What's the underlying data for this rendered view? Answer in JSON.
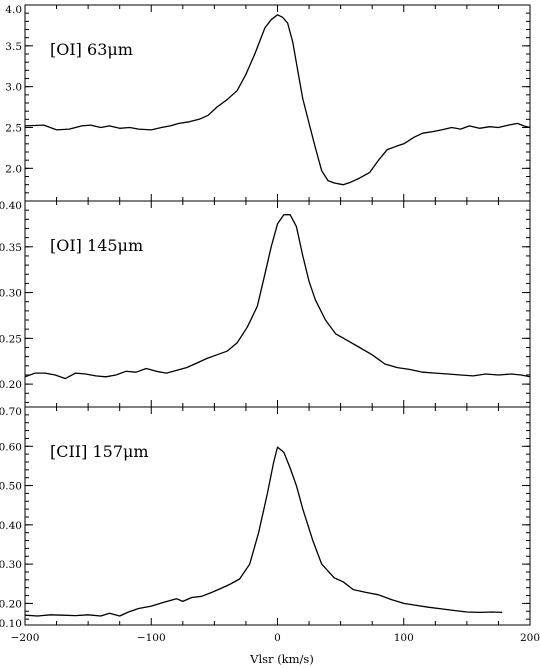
{
  "chart_data": [
    {
      "type": "line",
      "panel_label": "[OI] 63μm",
      "xlim": [
        -200,
        200
      ],
      "ylim": [
        1.6,
        4.0
      ],
      "yticks": [
        {
          "v": 2.0,
          "label": "2.0"
        },
        {
          "v": 2.5,
          "label": "2.5"
        },
        {
          "v": 3.0,
          "label": "3.0"
        },
        {
          "v": 3.5,
          "label": "3.5"
        },
        {
          "v": 4.0,
          "label": "4.0"
        }
      ],
      "yminor_step": 0.1,
      "series": [
        {
          "x": [
            -200,
            -185,
            -175,
            -165,
            -155,
            -148,
            -140,
            -133,
            -125,
            -117,
            -110,
            -100,
            -92,
            -85,
            -78,
            -70,
            -62,
            -55,
            -48,
            -40,
            -32,
            -25,
            -18,
            -10,
            -5,
            0,
            4,
            8,
            12,
            16,
            20,
            25,
            30,
            35,
            40,
            45,
            52,
            58,
            65,
            73,
            80,
            87,
            94,
            100,
            108,
            115,
            123,
            130,
            138,
            145,
            152,
            160,
            168,
            175,
            183,
            190,
            195,
            200
          ],
          "y": [
            2.52,
            2.53,
            2.47,
            2.48,
            2.52,
            2.53,
            2.5,
            2.52,
            2.49,
            2.5,
            2.48,
            2.47,
            2.5,
            2.52,
            2.55,
            2.57,
            2.6,
            2.65,
            2.75,
            2.84,
            2.95,
            3.15,
            3.4,
            3.72,
            3.82,
            3.88,
            3.85,
            3.78,
            3.55,
            3.2,
            2.85,
            2.55,
            2.25,
            1.97,
            1.85,
            1.82,
            1.8,
            1.83,
            1.88,
            1.95,
            2.1,
            2.23,
            2.27,
            2.3,
            2.38,
            2.43,
            2.45,
            2.47,
            2.5,
            2.48,
            2.52,
            2.49,
            2.51,
            2.5,
            2.53,
            2.55,
            2.52,
            2.5
          ]
        }
      ]
    },
    {
      "type": "line",
      "panel_label": "[OI] 145μm",
      "xlim": [
        -200,
        200
      ],
      "ylim": [
        0.175,
        0.4
      ],
      "yticks": [
        {
          "v": 0.2,
          "label": "0.20"
        },
        {
          "v": 0.25,
          "label": "0.25"
        },
        {
          "v": 0.3,
          "label": "0.30"
        },
        {
          "v": 0.35,
          "label": "0.35"
        },
        {
          "v": 0.4,
          "label": "0.40"
        }
      ],
      "yminor_step": 0.01,
      "series": [
        {
          "x": [
            -200,
            -192,
            -184,
            -176,
            -168,
            -160,
            -152,
            -144,
            -136,
            -128,
            -120,
            -112,
            -104,
            -96,
            -88,
            -80,
            -72,
            -64,
            -56,
            -48,
            -40,
            -32,
            -24,
            -16,
            -10,
            -5,
            0,
            5,
            10,
            15,
            20,
            25,
            30,
            38,
            46,
            55,
            65,
            75,
            85,
            95,
            105,
            115,
            125,
            135,
            145,
            155,
            165,
            175,
            185,
            193,
            200
          ],
          "y": [
            0.208,
            0.212,
            0.212,
            0.21,
            0.206,
            0.212,
            0.211,
            0.209,
            0.208,
            0.21,
            0.214,
            0.213,
            0.217,
            0.214,
            0.212,
            0.215,
            0.218,
            0.223,
            0.228,
            0.232,
            0.236,
            0.245,
            0.262,
            0.285,
            0.32,
            0.35,
            0.375,
            0.385,
            0.385,
            0.372,
            0.34,
            0.312,
            0.292,
            0.27,
            0.255,
            0.248,
            0.24,
            0.232,
            0.222,
            0.218,
            0.216,
            0.213,
            0.212,
            0.211,
            0.21,
            0.209,
            0.211,
            0.21,
            0.211,
            0.21,
            0.208
          ]
        }
      ]
    },
    {
      "type": "line",
      "panel_label": "[CII] 157μm",
      "xlim": [
        -200,
        200
      ],
      "ylim": [
        0.145,
        0.7
      ],
      "yticks": [
        {
          "v": 0.2,
          "label": "0.20"
        },
        {
          "v": 0.3,
          "label": "0.30"
        },
        {
          "v": 0.4,
          "label": "0.40"
        },
        {
          "v": 0.5,
          "label": "0.50"
        },
        {
          "v": 0.6,
          "label": "0.60"
        },
        {
          "v": 0.7,
          "label": "0.70"
        }
      ],
      "extra_tick_labels": [
        {
          "v": 0.15,
          "label": "0.10"
        }
      ],
      "yminor_step": 0.02,
      "series": [
        {
          "x": [
            -200,
            -190,
            -180,
            -170,
            -160,
            -150,
            -140,
            -133,
            -125,
            -118,
            -110,
            -100,
            -90,
            -80,
            -75,
            -68,
            -60,
            -52,
            -45,
            -38,
            -30,
            -22,
            -15,
            -8,
            -3,
            0,
            5,
            10,
            15,
            20,
            28,
            35,
            45,
            52,
            60,
            70,
            80,
            90,
            100,
            110,
            120,
            130,
            140,
            150,
            160,
            170,
            178
          ],
          "y": [
            0.17,
            0.168,
            0.171,
            0.17,
            0.169,
            0.171,
            0.168,
            0.175,
            0.168,
            0.178,
            0.187,
            0.193,
            0.203,
            0.212,
            0.205,
            0.215,
            0.218,
            0.228,
            0.238,
            0.248,
            0.262,
            0.3,
            0.38,
            0.48,
            0.56,
            0.598,
            0.585,
            0.545,
            0.5,
            0.44,
            0.36,
            0.3,
            0.265,
            0.255,
            0.235,
            0.228,
            0.222,
            0.21,
            0.2,
            0.195,
            0.19,
            0.186,
            0.182,
            0.178,
            0.177,
            0.178,
            0.177
          ]
        }
      ]
    }
  ],
  "xaxis": {
    "label": "Vlsr (km/s)",
    "ticks": [
      {
        "v": -200,
        "label": "−200"
      },
      {
        "v": -100,
        "label": "−100"
      },
      {
        "v": 0,
        "label": "0"
      },
      {
        "v": 100,
        "label": "100"
      },
      {
        "v": 200,
        "label": "200"
      }
    ],
    "minor_step": 25
  }
}
